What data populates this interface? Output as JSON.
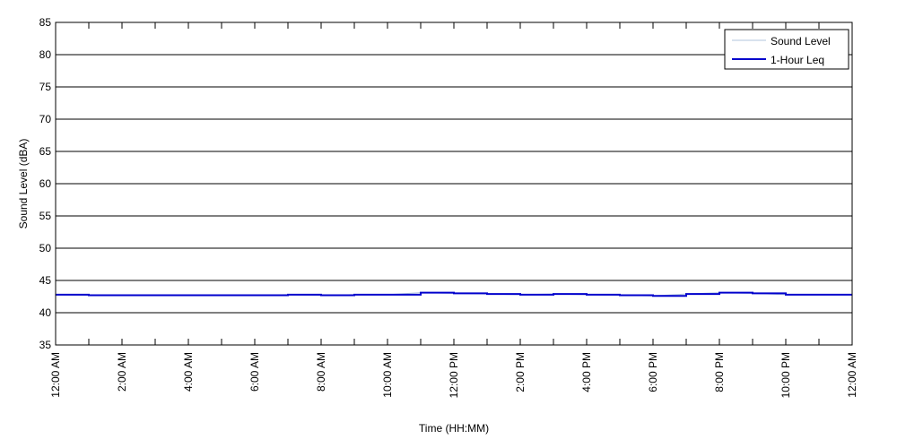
{
  "chart_data": {
    "type": "line",
    "title": "",
    "xlabel": "Time (HH:MM)",
    "ylabel": "Sound Level (dBA)",
    "ylim": [
      35,
      85
    ],
    "yticks": [
      35,
      40,
      45,
      50,
      55,
      60,
      65,
      70,
      75,
      80,
      85
    ],
    "xlim": [
      0,
      24
    ],
    "xtick_labels": [
      "12:00 AM",
      "2:00 AM",
      "4:00 AM",
      "6:00 AM",
      "8:00 AM",
      "10:00 AM",
      "12:00 PM",
      "2:00 PM",
      "4:00 PM",
      "6:00 PM",
      "8:00 PM",
      "10:00 PM",
      "12:00 AM"
    ],
    "grid": "horizontal",
    "legend_position": "top-right",
    "series": [
      {
        "name": "Sound Level",
        "color": "#b0c4de",
        "style": "line",
        "x": [
          0,
          1,
          2,
          3,
          4,
          5,
          6,
          7,
          8,
          9,
          10,
          11,
          12,
          13,
          14,
          15,
          16,
          17,
          18,
          19,
          20,
          21,
          22,
          23,
          24
        ],
        "values": [
          42.8,
          42.7,
          42.7,
          42.7,
          42.7,
          42.7,
          42.7,
          42.8,
          42.7,
          42.8,
          42.8,
          43.1,
          43.0,
          42.9,
          42.8,
          42.9,
          42.8,
          42.7,
          42.6,
          42.9,
          43.1,
          43.0,
          42.8,
          42.8,
          42.8
        ]
      },
      {
        "name": "1-Hour Leq",
        "color": "#0000cc",
        "style": "step",
        "x": [
          0,
          1,
          2,
          3,
          4,
          5,
          6,
          7,
          8,
          9,
          10,
          11,
          12,
          13,
          14,
          15,
          16,
          17,
          18,
          19,
          20,
          21,
          22,
          23
        ],
        "values": [
          42.8,
          42.7,
          42.7,
          42.7,
          42.7,
          42.7,
          42.7,
          42.8,
          42.7,
          42.8,
          42.8,
          43.1,
          43.0,
          42.9,
          42.8,
          42.9,
          42.8,
          42.7,
          42.6,
          42.9,
          43.1,
          43.0,
          42.8,
          42.8
        ]
      }
    ]
  }
}
